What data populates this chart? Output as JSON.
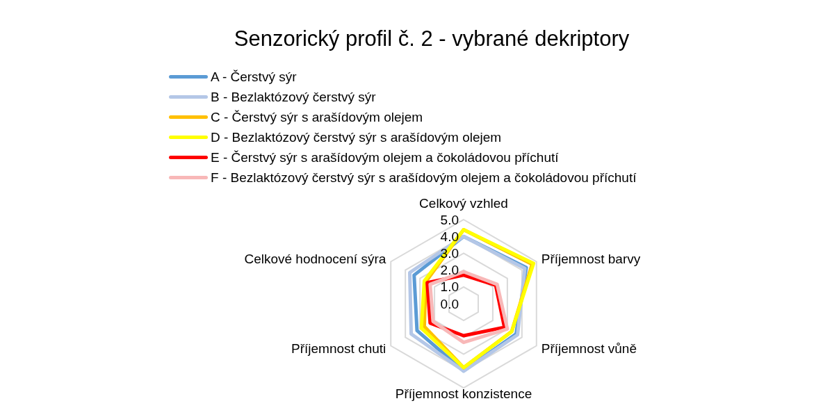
{
  "chart_data": {
    "type": "radar",
    "title": "Senzorický profil č. 2 - vybrané dekriptory",
    "categories": [
      "Celkový vzhled",
      "Příjemnost barvy",
      "Příjemnost vůně",
      "Příjemnost konzistence",
      "Příjemnost chuti",
      "Celkové hodnocení sýra"
    ],
    "series": [
      {
        "name": "A - Čerstvý sýr",
        "color": "#5b9bd5",
        "values": [
          4.0,
          4.3,
          3.6,
          4.0,
          3.2,
          3.4
        ]
      },
      {
        "name": "B - Bezlaktózový čerstvý sýr",
        "color": "#b4c7e7",
        "values": [
          4.0,
          4.2,
          3.7,
          4.0,
          3.6,
          3.7
        ]
      },
      {
        "name": "C - Čerstvý sýr s arašídovým olejem",
        "color": "#ffc000",
        "values": [
          4.4,
          4.7,
          3.3,
          3.8,
          2.7,
          2.6
        ]
      },
      {
        "name": "D - Bezlaktózový čerstvý sýr s arašídovým olejem",
        "color": "#ffff00",
        "values": [
          4.4,
          4.8,
          3.3,
          3.8,
          2.9,
          2.7
        ]
      },
      {
        "name": "E - Čerstvý sýr s arašídovým olejem a čokoládovou příchutí",
        "color": "#ff0000",
        "values": [
          1.7,
          2.2,
          2.8,
          1.9,
          2.3,
          2.5
        ]
      },
      {
        "name": "F - Bezlaktózový čerstvý sýr s arašídovým olejem a čokoládovou příchutí",
        "color": "#f8b8b8",
        "values": [
          1.9,
          2.3,
          3.0,
          2.3,
          2.1,
          2.3
        ]
      }
    ],
    "ylim": [
      0,
      5
    ],
    "yticks": [
      {
        "value": 0,
        "label": "0.0"
      },
      {
        "value": 1,
        "label": "1.0"
      },
      {
        "value": 2,
        "label": "2.0"
      },
      {
        "value": 3,
        "label": "3.0"
      },
      {
        "value": 4,
        "label": "4.0"
      },
      {
        "value": 5,
        "label": "5.0"
      }
    ],
    "grid": true,
    "legend": "top",
    "marker": "none",
    "line_style": "solid"
  }
}
